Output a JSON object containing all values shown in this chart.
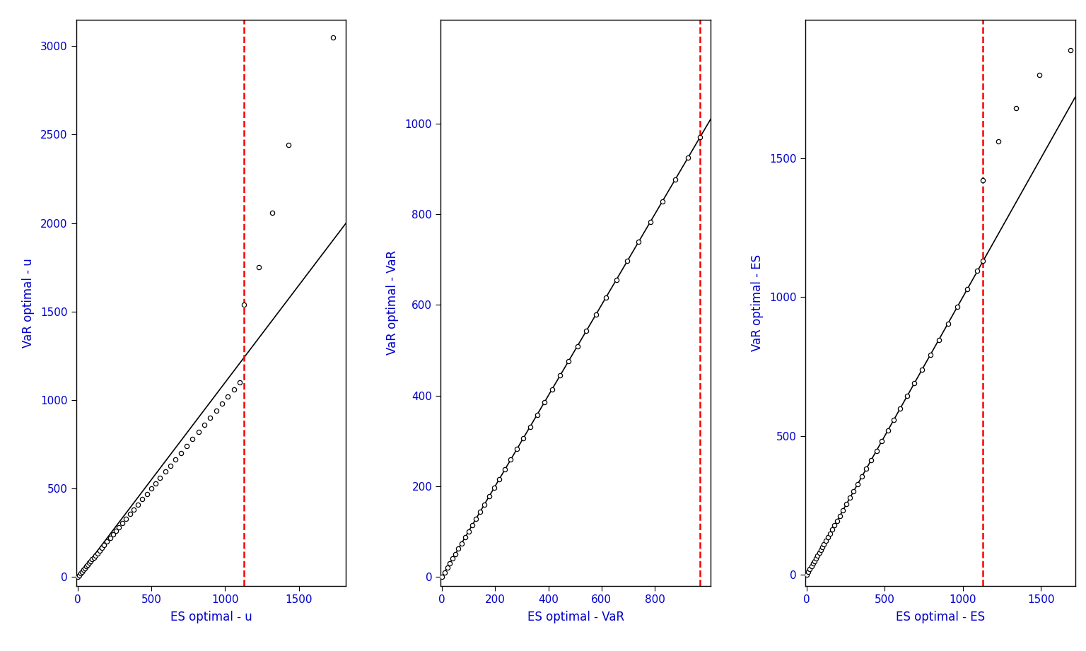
{
  "panel1": {
    "xlabel": "ES optimal - u",
    "ylabel": "VaR optimal - u",
    "vline_x": 1130,
    "xlim": [
      -10,
      1820
    ],
    "ylim": [
      -50,
      3150
    ],
    "xticks": [
      0,
      500,
      1000,
      1500
    ],
    "yticks": [
      0,
      500,
      1000,
      1500,
      2000,
      2500,
      3000
    ],
    "line_x0": 0,
    "line_y0": 0,
    "line_x1": 1820,
    "line_y1": 2000,
    "pt_x": [
      0,
      10,
      20,
      30,
      40,
      50,
      60,
      70,
      80,
      90,
      100,
      110,
      120,
      135,
      150,
      165,
      180,
      200,
      220,
      240,
      260,
      280,
      305,
      330,
      355,
      380,
      410,
      440,
      470,
      500,
      530,
      560,
      595,
      630,
      665,
      700,
      740,
      780,
      820,
      860,
      900,
      940,
      980,
      1020,
      1060,
      1100
    ],
    "pt_y": [
      0,
      10,
      20,
      30,
      40,
      50,
      60,
      70,
      80,
      90,
      100,
      110,
      120,
      135,
      150,
      165,
      180,
      200,
      220,
      240,
      260,
      280,
      305,
      330,
      355,
      380,
      410,
      440,
      470,
      500,
      530,
      560,
      595,
      630,
      665,
      700,
      740,
      780,
      820,
      860,
      900,
      940,
      980,
      1020,
      1060,
      1100
    ],
    "out_x": [
      1130,
      1230,
      1320,
      1430,
      1730
    ],
    "out_y": [
      1540,
      1750,
      2060,
      2440,
      3050
    ]
  },
  "panel2": {
    "xlabel": "ES optimal - VaR",
    "ylabel": "VaR optimal - VaR",
    "vline_x": 970,
    "xlim": [
      -5,
      1010
    ],
    "ylim": [
      -20,
      1230
    ],
    "xticks": [
      0,
      200,
      400,
      600,
      800
    ],
    "yticks": [
      0,
      200,
      400,
      600,
      800,
      1000
    ],
    "line_x0": 0,
    "line_y0": 0,
    "line_x1": 1010,
    "line_y1": 1010,
    "pt_x": [
      0,
      10,
      20,
      30,
      40,
      50,
      62,
      74,
      87,
      100,
      114,
      128,
      144,
      160,
      178,
      196,
      216,
      237,
      259,
      282,
      306,
      331,
      358,
      385,
      414,
      444,
      476,
      509,
      543,
      579,
      617,
      656,
      697,
      739,
      783,
      829,
      877,
      925,
      970
    ],
    "pt_y": [
      0,
      10,
      20,
      30,
      40,
      50,
      62,
      74,
      87,
      100,
      114,
      128,
      144,
      160,
      178,
      196,
      216,
      237,
      259,
      282,
      306,
      331,
      358,
      385,
      414,
      444,
      476,
      509,
      543,
      579,
      617,
      656,
      697,
      739,
      783,
      829,
      877,
      925,
      970
    ],
    "out_x": [],
    "out_y": []
  },
  "panel3": {
    "xlabel": "ES optimal - ES",
    "ylabel": "VaR optimal - ES",
    "vline_x": 1130,
    "xlim": [
      -10,
      1720
    ],
    "ylim": [
      -40,
      2000
    ],
    "xticks": [
      0,
      500,
      1000,
      1500
    ],
    "yticks": [
      0,
      500,
      1000,
      1500
    ],
    "line_x0": 0,
    "line_y0": 0,
    "line_x1": 1720,
    "line_y1": 1720,
    "pt_x": [
      0,
      10,
      20,
      30,
      40,
      50,
      60,
      70,
      80,
      90,
      100,
      110,
      122,
      135,
      148,
      163,
      178,
      195,
      213,
      233,
      254,
      277,
      301,
      327,
      354,
      383,
      414,
      447,
      482,
      519,
      558,
      600,
      644,
      691,
      740,
      792,
      847,
      905,
      965,
      1028,
      1094,
      1130
    ],
    "pt_y": [
      0,
      10,
      20,
      30,
      40,
      50,
      60,
      70,
      80,
      90,
      100,
      110,
      122,
      135,
      148,
      163,
      178,
      195,
      213,
      233,
      254,
      277,
      301,
      327,
      354,
      383,
      414,
      447,
      482,
      519,
      558,
      600,
      644,
      691,
      740,
      792,
      847,
      905,
      965,
      1028,
      1094,
      1130
    ],
    "out_x": [
      1130,
      1230,
      1340,
      1490,
      1690
    ],
    "out_y": [
      1420,
      1560,
      1680,
      1800,
      1890
    ]
  },
  "vline_color": "#FF0000",
  "vline_lw": 1.8,
  "line_color": "#000000",
  "line_lw": 1.2,
  "marker_color": "#000000",
  "marker_face": "white",
  "marker_size": 4.5,
  "marker_lw": 0.9,
  "bg_color": "#FFFFFF",
  "tick_label_color": "#0000CC",
  "axis_label_color": "#0000CC",
  "fig_bg": "#FFFFFF",
  "tick_fontsize": 11,
  "label_fontsize": 12
}
